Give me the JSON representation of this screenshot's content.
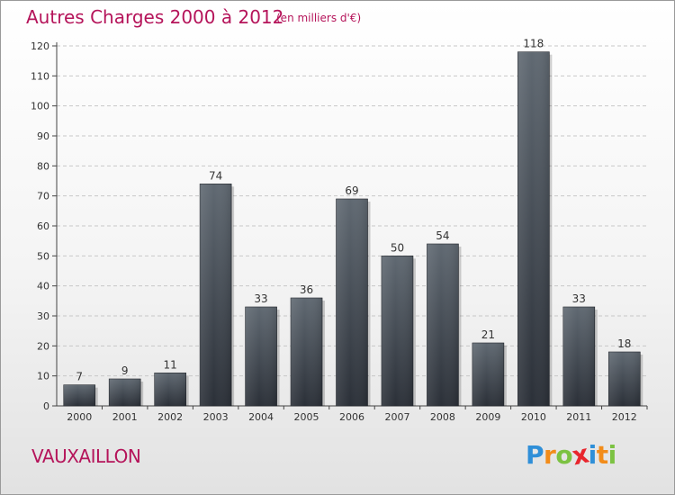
{
  "header": {
    "title": "Autres Charges 2000 à 2012",
    "unit": "(en milliers d'€)"
  },
  "footer": {
    "town": "VAUXAILLON",
    "logo_letters": [
      {
        "ch": "P",
        "color": "#2f8fd8"
      },
      {
        "ch": "r",
        "color": "#f28c1a"
      },
      {
        "ch": "o",
        "color": "#7cc242"
      },
      {
        "ch": "x",
        "color": "#e8262d"
      },
      {
        "ch": "i",
        "color": "#2f8fd8"
      },
      {
        "ch": "t",
        "color": "#f28c1a"
      },
      {
        "ch": "i",
        "color": "#7cc242"
      }
    ]
  },
  "colors": {
    "title": "#b5145a",
    "bar_top": "#606972",
    "bar_bottom": "#2b3038",
    "axis": "#444444",
    "grid": "#c8c8c8"
  },
  "chart_data": {
    "type": "bar",
    "categories": [
      "2000",
      "2001",
      "2002",
      "2003",
      "2004",
      "2005",
      "2006",
      "2007",
      "2008",
      "2009",
      "2010",
      "2011",
      "2012"
    ],
    "values": [
      7,
      9,
      11,
      74,
      33,
      36,
      69,
      50,
      54,
      21,
      118,
      33,
      18
    ],
    "title": "Autres Charges 2000 à 2012",
    "subtitle": "(en milliers d'€)",
    "xlabel": "",
    "ylabel": "",
    "ylim": [
      0,
      120
    ],
    "yticks": [
      0,
      10,
      20,
      30,
      40,
      50,
      60,
      70,
      80,
      90,
      100,
      110,
      120
    ],
    "grid": true,
    "data_labels": true
  }
}
